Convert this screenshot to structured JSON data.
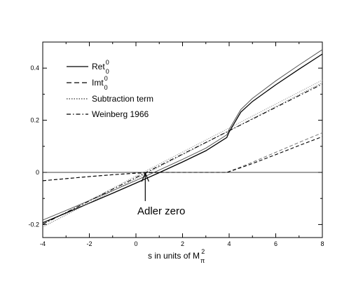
{
  "chart_data": {
    "type": "line",
    "title": "",
    "xlabel": "s in units of M",
    "xlabel_sup": "2",
    "xlabel_sub": "π",
    "ylabel": "",
    "xlim": [
      -4,
      8
    ],
    "ylim": [
      -0.25,
      0.5
    ],
    "xticks": [
      -4,
      -2,
      0,
      2,
      4,
      6,
      8
    ],
    "xtick_labels": [
      "-4",
      "-2",
      "0",
      "2",
      "4",
      "6",
      "8"
    ],
    "yticks": [
      -0.2,
      0,
      0.2,
      0.4
    ],
    "ytick_labels": [
      "-0.2",
      "0",
      "0.2",
      "0.4"
    ],
    "grid": false,
    "legend_position": "top-left",
    "series": [
      {
        "name": "Ret",
        "name_sup": "0",
        "name_sub": "0",
        "style": "solid",
        "color": "#000000",
        "x": [
          -4,
          -3,
          -2,
          -1,
          0,
          1,
          2,
          3,
          3.9,
          4,
          4.5,
          5,
          6,
          7,
          8
        ],
        "y": [
          -0.193,
          -0.156,
          -0.118,
          -0.08,
          -0.041,
          -0.001,
          0.04,
          0.083,
          0.134,
          0.155,
          0.231,
          0.272,
          0.336,
          0.396,
          0.454
        ],
        "x_band": [
          -4,
          -3,
          -2,
          -1,
          0,
          1,
          2,
          3,
          3.9,
          4,
          4.5,
          5,
          6,
          7,
          8
        ],
        "y_band": [
          -0.183,
          -0.146,
          -0.108,
          -0.07,
          -0.031,
          0.009,
          0.05,
          0.093,
          0.144,
          0.165,
          0.241,
          0.284,
          0.351,
          0.412,
          0.471
        ]
      },
      {
        "name": "Imt",
        "name_sup": "0",
        "name_sub": "0",
        "style": "dashed",
        "color": "#000000",
        "x": [
          -4,
          -3,
          -2,
          -1,
          0,
          1,
          2,
          3,
          3.9,
          4.5,
          5,
          6,
          7,
          8
        ],
        "y": [
          -0.032,
          -0.024,
          -0.016,
          -0.009,
          -0.003,
          0.0,
          0.0,
          0.0,
          0.0,
          0.018,
          0.034,
          0.068,
          0.103,
          0.137
        ],
        "x_band": [
          -4,
          -3,
          -2,
          -1,
          0,
          1,
          2,
          3,
          3.9,
          4.5,
          5,
          6,
          7,
          8
        ],
        "y_band": [
          -0.032,
          -0.024,
          -0.016,
          -0.009,
          -0.003,
          0.0,
          0.0,
          0.0,
          0.0,
          0.021,
          0.039,
          0.077,
          0.115,
          0.152
        ]
      },
      {
        "name": "Subtraction term",
        "style": "dotted",
        "color": "#000000",
        "x": [
          -4,
          -3,
          -2,
          -1,
          0,
          1,
          2,
          3,
          4,
          5,
          6,
          7,
          8
        ],
        "y": [
          -0.209,
          -0.163,
          -0.117,
          -0.071,
          -0.024,
          0.022,
          0.068,
          0.114,
          0.16,
          0.206,
          0.252,
          0.298,
          0.344
        ],
        "x_band": [
          -4,
          -3,
          -2,
          -1,
          0,
          1,
          2,
          3,
          4,
          5,
          6,
          7,
          8
        ],
        "y_band": [
          -0.199,
          -0.153,
          -0.107,
          -0.061,
          -0.014,
          0.032,
          0.078,
          0.124,
          0.17,
          0.216,
          0.262,
          0.308,
          0.354
        ]
      },
      {
        "name": "Weinberg 1966",
        "style": "dashdot",
        "color": "#000000",
        "x": [
          -4,
          8
        ],
        "y": [
          -0.199,
          0.339
        ]
      }
    ],
    "reference_lines": [
      {
        "axis": "y",
        "value": 0
      }
    ],
    "annotations": [
      {
        "text": "Adler zero",
        "arrow_to": [
          0.4,
          0
        ],
        "arrow_from": [
          0.4,
          -0.11
        ]
      }
    ]
  }
}
